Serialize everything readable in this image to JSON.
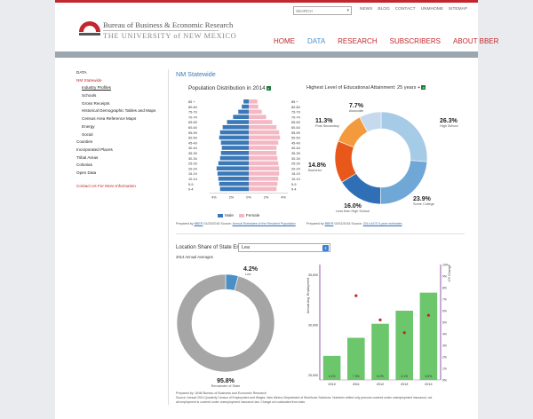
{
  "header": {
    "search_placeholder": "SEARCH",
    "top_links": [
      "NEWS",
      "BLOG",
      "CONTACT",
      "UNMHOME",
      "SITEMAP"
    ],
    "logo_line1": "Bureau of Business & Economic Research",
    "logo_line2": "THE UNIVERSITY of NEW MEXICO",
    "nav": [
      "HOME",
      "DATA",
      "RESEARCH",
      "SUBSCRIBERS",
      "ABOUT BBER"
    ],
    "active_nav": "DATA",
    "colors": {
      "accent": "#c1272d",
      "active": "#4a90c8"
    }
  },
  "sidebar": {
    "items": [
      {
        "label": "DATA",
        "style": "normal"
      },
      {
        "label": "NM Statewide",
        "style": "red"
      },
      {
        "label": "Industry Profiles",
        "style": "sub-selected"
      },
      {
        "label": "Schools",
        "style": "sub"
      },
      {
        "label": "Gross Receipts",
        "style": "sub"
      },
      {
        "label": "Historical Demographic Tables and Maps",
        "style": "sub"
      },
      {
        "label": "Census Area Reference Maps",
        "style": "sub"
      },
      {
        "label": "Energy",
        "style": "sub"
      },
      {
        "label": "Social",
        "style": "sub"
      },
      {
        "label": "Counties",
        "style": "normal"
      },
      {
        "label": "Incorporated Places",
        "style": "normal"
      },
      {
        "label": "Tribal Areas",
        "style": "normal"
      },
      {
        "label": "Colonias",
        "style": "normal"
      },
      {
        "label": "Open Data",
        "style": "normal"
      }
    ],
    "contact": "Contact Us For More Information"
  },
  "main": {
    "heading": "NM Statewide",
    "location_label": "Location Share of State Employment:",
    "location_value": "Lea",
    "averages_label": "2014 Annual Averages",
    "pyramid_source_prefix": "Prepared by",
    "pyramid_source_link1": "BBER",
    "pyramid_source_mid": "01/23/2016 Source:",
    "pyramid_source_link2": "Annual Estimates of the Resident Population",
    "edu_source_prefix": "Prepared by",
    "edu_source_link1": "BBER",
    "edu_source_mid": "02/01/2016 Source:",
    "edu_source_link2": "2014 ACS 5-year estimates",
    "footer_line1": "Prepared by: UNM Bureau of Business and Economic Research",
    "footer_line2": "Source: Annual 2014 Quarterly Census of Employment and Wages, New Mexico Department of Workforce Solutions. Numbers reflect only persons covered under unemployment insurance; not",
    "footer_line3": "all employment is covered under unemployment insurance law. Change w/o calculated from data."
  },
  "chart_data": [
    {
      "type": "bar",
      "subtype": "population-pyramid",
      "title": "Population Distribution in 2014",
      "categories": [
        "0-4",
        "5-9",
        "10-14",
        "15-19",
        "20-24",
        "25-29",
        "30-34",
        "35-39",
        "40-44",
        "45-49",
        "50-54",
        "55-59",
        "60-64",
        "65-69",
        "70-74",
        "75-79",
        "80-84",
        "85 +"
      ],
      "series": [
        {
          "name": "Male",
          "color": "#3a78b8",
          "values": [
            3.3,
            3.4,
            3.5,
            3.6,
            3.7,
            3.5,
            3.3,
            3.2,
            3.1,
            3.2,
            3.4,
            3.3,
            3.0,
            2.5,
            1.8,
            1.2,
            0.8,
            0.6
          ]
        },
        {
          "name": "Female",
          "color": "#f4b8c4",
          "values": [
            3.2,
            3.3,
            3.4,
            3.5,
            3.5,
            3.4,
            3.3,
            3.2,
            3.2,
            3.4,
            3.6,
            3.5,
            3.2,
            2.7,
            2.0,
            1.5,
            1.1,
            1.0
          ]
        }
      ],
      "xticks": [
        "4%",
        "2%",
        "0%",
        "2%",
        "4%"
      ],
      "xlim": [
        -4.5,
        4.5
      ]
    },
    {
      "type": "pie",
      "subtype": "donut",
      "title": "Highest Level of Educational Attainment: 25 years +",
      "slices": [
        {
          "label": "High School",
          "value": 26.3,
          "pct": "26.3%",
          "color": "#a6cbe6"
        },
        {
          "label": "Some College",
          "value": 23.9,
          "pct": "23.9%",
          "color": "#6fa8d6"
        },
        {
          "label": "Less than High School",
          "value": 16.0,
          "pct": "16.0%",
          "color": "#2f6fb5"
        },
        {
          "label": "Bachelor",
          "value": 14.8,
          "pct": "14.8%",
          "color": "#e8581b"
        },
        {
          "label": "Post Secondary",
          "value": 11.3,
          "pct": "11.3%",
          "color": "#f39a3c"
        },
        {
          "label": "Associate",
          "value": 7.7,
          "pct": "7.7%",
          "color": "#c7d9ec"
        }
      ]
    },
    {
      "type": "pie",
      "subtype": "donut",
      "slices": [
        {
          "label": "Lea",
          "value": 4.2,
          "pct": "4.2%",
          "color": "#4a90c8"
        },
        {
          "label": "Remainder of State",
          "value": 95.8,
          "pct": "95.8%",
          "color": "#a6a6a6"
        }
      ]
    },
    {
      "type": "bar",
      "categories": [
        "2010",
        "2011",
        "2012",
        "2013",
        "2014"
      ],
      "values": [
        26900,
        28700,
        30100,
        31400,
        33200
      ],
      "bar_labels": [
        "4.1%",
        "7.3%",
        "5.2%",
        "4.1%",
        "5.6%"
      ],
      "ylabel": "Annual Avg. Employment",
      "y2label": "Y/Y Change",
      "yticks": [
        "25,000",
        "30,000",
        "35,000"
      ],
      "ylim": [
        24500,
        36000
      ],
      "y2ticks": [
        "0%",
        "1%",
        "2%",
        "3%",
        "4%",
        "5%",
        "6%",
        "7%",
        "8%",
        "9%",
        "10%"
      ],
      "change_markers": [
        null,
        7.3,
        5.2,
        4.1,
        5.6
      ],
      "bar_color": "#6cc66c",
      "marker_color": "#c1272d"
    }
  ]
}
